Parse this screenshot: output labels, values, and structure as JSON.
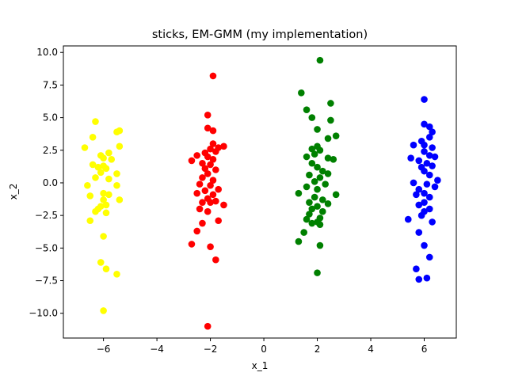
{
  "chart_data": {
    "type": "scatter",
    "title": "sticks, EM-GMM (my implementation)",
    "xlabel": "x_1",
    "ylabel": "x_2",
    "xlim": [
      -7.5,
      7.2
    ],
    "ylim": [
      -11.9,
      10.5
    ],
    "xticks": [
      -6,
      -4,
      -2,
      0,
      2,
      4,
      6
    ],
    "xtick_labels": [
      "−6",
      "−4",
      "−2",
      "0",
      "2",
      "4",
      "6"
    ],
    "yticks": [
      -10.0,
      -7.5,
      -5.0,
      -2.5,
      0.0,
      2.5,
      5.0,
      7.5,
      10.0
    ],
    "ytick_labels": [
      "−10.0",
      "−7.5",
      "−5.0",
      "−2.5",
      "0.0",
      "2.5",
      "5.0",
      "7.5",
      "10.0"
    ],
    "grid": false,
    "series": [
      {
        "color": "#ffff00",
        "points": [
          [
            -6.3,
            4.7
          ],
          [
            -5.5,
            3.9
          ],
          [
            -5.4,
            4.0
          ],
          [
            -6.4,
            3.5
          ],
          [
            -5.4,
            2.8
          ],
          [
            -6.7,
            2.7
          ],
          [
            -6.1,
            2.1
          ],
          [
            -5.8,
            2.3
          ],
          [
            -6.0,
            1.9
          ],
          [
            -5.7,
            1.8
          ],
          [
            -6.4,
            1.4
          ],
          [
            -6.2,
            1.2
          ],
          [
            -6.0,
            1.3
          ],
          [
            -5.9,
            1.1
          ],
          [
            -6.1,
            0.8
          ],
          [
            -5.5,
            0.7
          ],
          [
            -6.3,
            0.4
          ],
          [
            -5.8,
            0.3
          ],
          [
            -6.6,
            -0.2
          ],
          [
            -5.5,
            -0.2
          ],
          [
            -6.0,
            -0.8
          ],
          [
            -5.8,
            -0.9
          ],
          [
            -6.5,
            -1.0
          ],
          [
            -6.0,
            -1.3
          ],
          [
            -5.4,
            -1.3
          ],
          [
            -6.1,
            -1.8
          ],
          [
            -5.9,
            -1.7
          ],
          [
            -6.2,
            -2.0
          ],
          [
            -6.3,
            -2.2
          ],
          [
            -5.9,
            -2.3
          ],
          [
            -6.5,
            -2.9
          ],
          [
            -6.0,
            -4.1
          ],
          [
            -6.1,
            -6.1
          ],
          [
            -5.9,
            -6.6
          ],
          [
            -5.5,
            -7.0
          ],
          [
            -6.0,
            -9.8
          ]
        ]
      },
      {
        "color": "#ff0000",
        "points": [
          [
            -1.9,
            8.2
          ],
          [
            -2.1,
            5.2
          ],
          [
            -2.1,
            4.2
          ],
          [
            -1.9,
            4.0
          ],
          [
            -1.9,
            3.0
          ],
          [
            -1.5,
            2.8
          ],
          [
            -1.7,
            2.7
          ],
          [
            -2.0,
            2.6
          ],
          [
            -1.8,
            2.4
          ],
          [
            -2.2,
            2.3
          ],
          [
            -2.5,
            2.1
          ],
          [
            -2.1,
            2.0
          ],
          [
            -1.9,
            1.8
          ],
          [
            -2.7,
            1.7
          ],
          [
            -2.3,
            1.5
          ],
          [
            -2.0,
            1.4
          ],
          [
            -2.2,
            1.1
          ],
          [
            -1.8,
            1.0
          ],
          [
            -2.1,
            0.7
          ],
          [
            -2.3,
            0.4
          ],
          [
            -1.9,
            0.2
          ],
          [
            -2.4,
            -0.1
          ],
          [
            -2.0,
            -0.2
          ],
          [
            -1.7,
            -0.5
          ],
          [
            -2.2,
            -0.6
          ],
          [
            -2.5,
            -0.8
          ],
          [
            -1.9,
            -0.9
          ],
          [
            -2.1,
            -1.2
          ],
          [
            -1.8,
            -1.4
          ],
          [
            -2.3,
            -1.5
          ],
          [
            -2.0,
            -1.5
          ],
          [
            -1.5,
            -1.7
          ],
          [
            -2.4,
            -2.0
          ],
          [
            -2.1,
            -2.2
          ],
          [
            -1.7,
            -2.9
          ],
          [
            -2.3,
            -3.1
          ],
          [
            -2.5,
            -3.7
          ],
          [
            -2.7,
            -4.7
          ],
          [
            -2.0,
            -4.9
          ],
          [
            -1.8,
            -5.9
          ],
          [
            -2.1,
            -11.0
          ]
        ]
      },
      {
        "color": "#008000",
        "points": [
          [
            2.1,
            9.4
          ],
          [
            1.4,
            6.9
          ],
          [
            2.5,
            6.1
          ],
          [
            1.6,
            5.6
          ],
          [
            1.8,
            5.0
          ],
          [
            2.5,
            4.8
          ],
          [
            2.0,
            4.1
          ],
          [
            2.7,
            3.6
          ],
          [
            2.4,
            3.4
          ],
          [
            1.8,
            2.6
          ],
          [
            2.0,
            2.8
          ],
          [
            2.1,
            2.5
          ],
          [
            1.9,
            2.2
          ],
          [
            1.6,
            2.0
          ],
          [
            2.4,
            1.9
          ],
          [
            2.6,
            1.8
          ],
          [
            1.8,
            1.5
          ],
          [
            2.0,
            1.2
          ],
          [
            2.2,
            0.9
          ],
          [
            1.7,
            0.6
          ],
          [
            2.4,
            0.7
          ],
          [
            2.1,
            0.4
          ],
          [
            1.9,
            0.1
          ],
          [
            2.3,
            -0.1
          ],
          [
            1.6,
            -0.3
          ],
          [
            2.0,
            -0.5
          ],
          [
            1.3,
            -0.8
          ],
          [
            2.7,
            -0.9
          ],
          [
            1.9,
            -1.1
          ],
          [
            2.2,
            -1.3
          ],
          [
            1.7,
            -1.5
          ],
          [
            2.4,
            -1.6
          ],
          [
            2.0,
            -1.8
          ],
          [
            1.8,
            -2.0
          ],
          [
            2.2,
            -2.2
          ],
          [
            1.7,
            -2.4
          ],
          [
            2.1,
            -2.7
          ],
          [
            1.6,
            -2.8
          ],
          [
            2.0,
            -3.0
          ],
          [
            1.8,
            -3.1
          ],
          [
            2.1,
            -3.2
          ],
          [
            1.5,
            -3.8
          ],
          [
            1.3,
            -4.5
          ],
          [
            2.1,
            -4.8
          ],
          [
            2.0,
            -6.9
          ]
        ]
      },
      {
        "color": "#0000ff",
        "points": [
          [
            6.0,
            6.4
          ],
          [
            6.0,
            4.5
          ],
          [
            6.2,
            4.3
          ],
          [
            6.3,
            3.9
          ],
          [
            6.2,
            3.5
          ],
          [
            5.9,
            3.2
          ],
          [
            5.6,
            2.9
          ],
          [
            6.0,
            2.9
          ],
          [
            6.3,
            2.7
          ],
          [
            6.0,
            2.4
          ],
          [
            6.2,
            2.1
          ],
          [
            6.4,
            2.0
          ],
          [
            5.5,
            1.9
          ],
          [
            5.8,
            1.7
          ],
          [
            6.1,
            1.5
          ],
          [
            6.3,
            1.3
          ],
          [
            5.9,
            1.2
          ],
          [
            6.0,
            0.9
          ],
          [
            6.2,
            0.6
          ],
          [
            6.5,
            0.2
          ],
          [
            5.6,
            0.0
          ],
          [
            6.1,
            -0.1
          ],
          [
            6.4,
            -0.3
          ],
          [
            5.8,
            -0.5
          ],
          [
            6.0,
            -0.8
          ],
          [
            5.7,
            -0.9
          ],
          [
            6.2,
            -1.1
          ],
          [
            6.0,
            -1.5
          ],
          [
            5.8,
            -1.7
          ],
          [
            6.2,
            -2.0
          ],
          [
            6.0,
            -2.2
          ],
          [
            5.9,
            -2.5
          ],
          [
            5.4,
            -2.8
          ],
          [
            6.3,
            -3.0
          ],
          [
            5.8,
            -3.8
          ],
          [
            6.0,
            -4.8
          ],
          [
            6.2,
            -5.7
          ],
          [
            5.7,
            -6.6
          ],
          [
            6.1,
            -7.3
          ],
          [
            5.8,
            -7.4
          ]
        ]
      }
    ]
  }
}
